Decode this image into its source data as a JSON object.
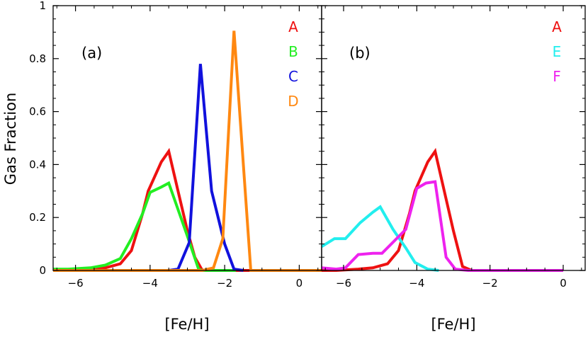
{
  "figure": {
    "ylabel": "Gas Fraction"
  },
  "chart_data": [
    {
      "type": "line",
      "panel_label": "(a)",
      "xlabel": "[Fe/H]",
      "ylabel": "Gas Fraction",
      "xlim": [
        -6.6,
        0.6
      ],
      "ylim": [
        0,
        1
      ],
      "x_ticks": [
        -6,
        -4,
        -2,
        0
      ],
      "y_ticks": [
        0,
        0.2,
        0.4,
        0.6,
        0.8,
        1
      ],
      "y_tick_labels": [
        "0",
        "0.2",
        "0.4",
        "0.6",
        "0.8",
        "1"
      ],
      "legend_position": "top-right",
      "series": [
        {
          "name": "A",
          "color": "#ee1111",
          "points": [
            [
              -6.6,
              0
            ],
            [
              -6.2,
              0
            ],
            [
              -5.6,
              0.005
            ],
            [
              -5.2,
              0.01
            ],
            [
              -4.8,
              0.025
            ],
            [
              -4.5,
              0.075
            ],
            [
              -4.2,
              0.215
            ],
            [
              -4.05,
              0.3
            ],
            [
              -3.7,
              0.41
            ],
            [
              -3.5,
              0.45
            ],
            [
              -3.25,
              0.3
            ],
            [
              -3.0,
              0.15
            ],
            [
              -2.8,
              0.05
            ],
            [
              -2.6,
              0
            ],
            [
              -1.4,
              0
            ],
            [
              0.6,
              0
            ]
          ]
        },
        {
          "name": "B",
          "color": "#22ee22",
          "points": [
            [
              -6.6,
              0.005
            ],
            [
              -6.2,
              0.005
            ],
            [
              -5.6,
              0.01
            ],
            [
              -5.2,
              0.02
            ],
            [
              -4.8,
              0.045
            ],
            [
              -4.5,
              0.12
            ],
            [
              -4.2,
              0.215
            ],
            [
              -4.0,
              0.295
            ],
            [
              -3.7,
              0.315
            ],
            [
              -3.5,
              0.33
            ],
            [
              -3.0,
              0.13
            ],
            [
              -2.7,
              0.005
            ],
            [
              -2.6,
              0
            ],
            [
              -1.7,
              0
            ]
          ]
        },
        {
          "name": "C",
          "color": "#1111dd",
          "points": [
            [
              -3.5,
              0
            ],
            [
              -3.25,
              0.005
            ],
            [
              -2.95,
              0.105
            ],
            [
              -2.65,
              0.78
            ],
            [
              -2.35,
              0.3
            ],
            [
              -2.0,
              0.1
            ],
            [
              -1.75,
              0.005
            ],
            [
              -1.5,
              0
            ]
          ]
        },
        {
          "name": "D",
          "color": "#ff8811",
          "points": [
            [
              -6.6,
              0
            ],
            [
              -2.6,
              0
            ],
            [
              -2.3,
              0.01
            ],
            [
              -2.05,
              0.12
            ],
            [
              -1.75,
              0.905
            ],
            [
              -1.5,
              0.4
            ],
            [
              -1.3,
              0
            ],
            [
              0.6,
              0
            ]
          ]
        }
      ]
    },
    {
      "type": "line",
      "panel_label": "(b)",
      "xlabel": "[Fe/H]",
      "xlim": [
        -6.6,
        0.6
      ],
      "ylim": [
        0,
        1
      ],
      "x_ticks": [
        -6,
        -4,
        -2,
        0
      ],
      "legend_position": "top-right",
      "series": [
        {
          "name": "A",
          "color": "#ee1111",
          "points": [
            [
              -6.6,
              0
            ],
            [
              -6.2,
              0
            ],
            [
              -5.6,
              0.005
            ],
            [
              -5.2,
              0.01
            ],
            [
              -4.8,
              0.025
            ],
            [
              -4.5,
              0.075
            ],
            [
              -4.2,
              0.215
            ],
            [
              -4.05,
              0.3
            ],
            [
              -3.7,
              0.41
            ],
            [
              -3.5,
              0.45
            ],
            [
              -3.25,
              0.3
            ],
            [
              -3.0,
              0.15
            ],
            [
              -2.75,
              0.015
            ],
            [
              -2.5,
              0
            ],
            [
              0,
              0
            ]
          ]
        },
        {
          "name": "E",
          "color": "#22eeee",
          "points": [
            [
              -6.6,
              0.09
            ],
            [
              -6.25,
              0.12
            ],
            [
              -5.95,
              0.12
            ],
            [
              -5.55,
              0.18
            ],
            [
              -5.2,
              0.22
            ],
            [
              -5.0,
              0.24
            ],
            [
              -4.65,
              0.155
            ],
            [
              -4.3,
              0.085
            ],
            [
              -4.05,
              0.03
            ],
            [
              -3.7,
              0.005
            ],
            [
              -3.4,
              0
            ]
          ]
        },
        {
          "name": "F",
          "color": "#ee22ee",
          "points": [
            [
              -6.6,
              0.01
            ],
            [
              -6.2,
              0.005
            ],
            [
              -5.95,
              0.01
            ],
            [
              -5.6,
              0.06
            ],
            [
              -5.2,
              0.065
            ],
            [
              -4.95,
              0.065
            ],
            [
              -4.3,
              0.155
            ],
            [
              -4.0,
              0.31
            ],
            [
              -3.75,
              0.33
            ],
            [
              -3.5,
              0.335
            ],
            [
              -3.2,
              0.05
            ],
            [
              -2.95,
              0.005
            ],
            [
              -2.6,
              0
            ],
            [
              0,
              0
            ]
          ]
        }
      ]
    }
  ]
}
